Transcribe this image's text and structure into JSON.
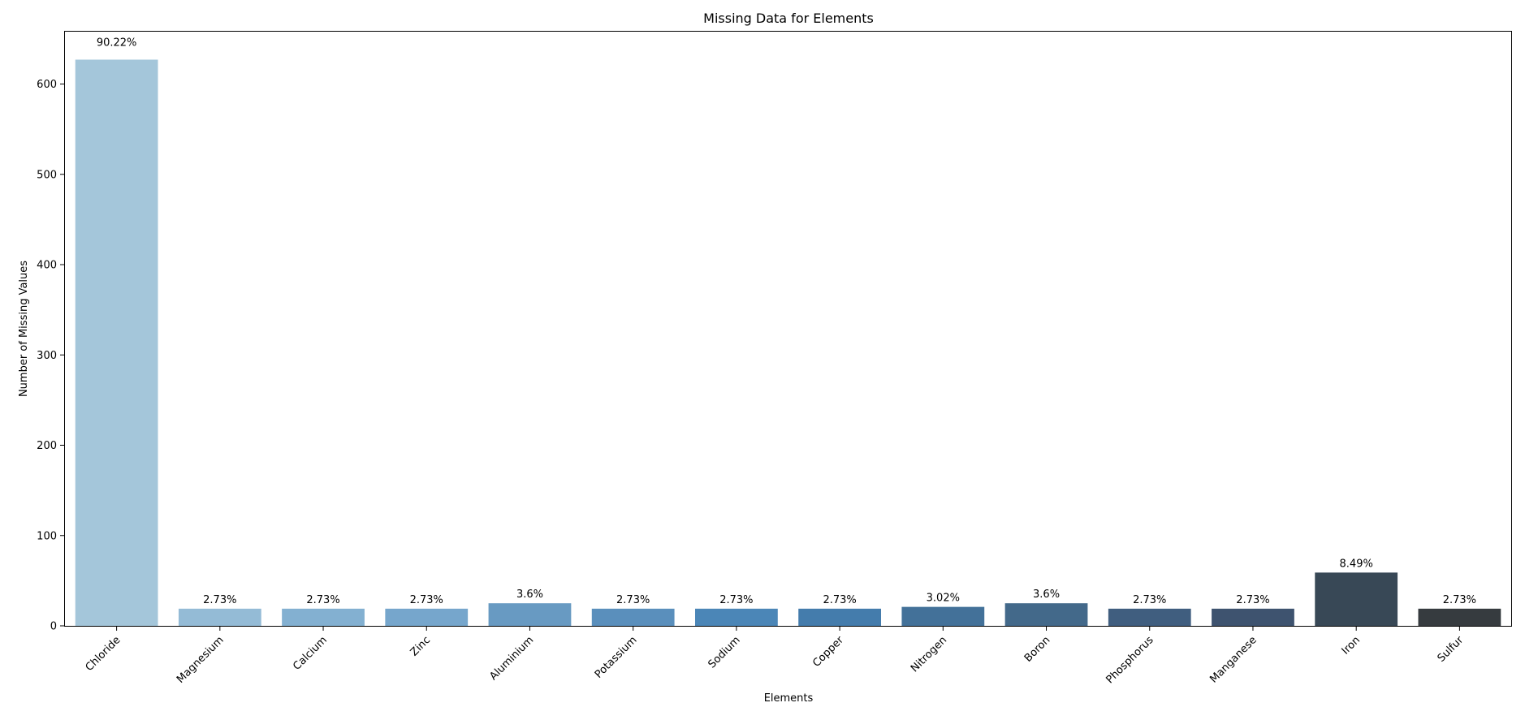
{
  "chart_data": {
    "type": "bar",
    "title": "Missing Data for Elements",
    "xlabel": "Elements",
    "ylabel": "Number of Missing Values",
    "ylim": [
      0,
      658
    ],
    "yticks": [
      0,
      100,
      200,
      300,
      400,
      500,
      600
    ],
    "grid": false,
    "categories": [
      "Chloride",
      "Magnesium",
      "Calcium",
      "Zinc",
      "Aluminium",
      "Potassium",
      "Sodium",
      "Copper",
      "Nitrogen",
      "Boron",
      "Phosphorus",
      "Manganese",
      "Iron",
      "Sulfur"
    ],
    "values": [
      627,
      19,
      19,
      19,
      25,
      19,
      19,
      19,
      21,
      25,
      19,
      19,
      59,
      19
    ],
    "labels": [
      "90.22%",
      "2.73%",
      "2.73%",
      "2.73%",
      "3.6%",
      "2.73%",
      "2.73%",
      "2.73%",
      "3.02%",
      "3.6%",
      "2.73%",
      "2.73%",
      "8.49%",
      "2.73%"
    ],
    "colors": [
      "#a4c6da",
      "#94bbd6",
      "#83b0d1",
      "#76a6cc",
      "#689ac2",
      "#5a8fbc",
      "#4b86b7",
      "#447cac",
      "#437199",
      "#43698a",
      "#405e7f",
      "#3e536f",
      "#384856",
      "#363b3f"
    ]
  }
}
